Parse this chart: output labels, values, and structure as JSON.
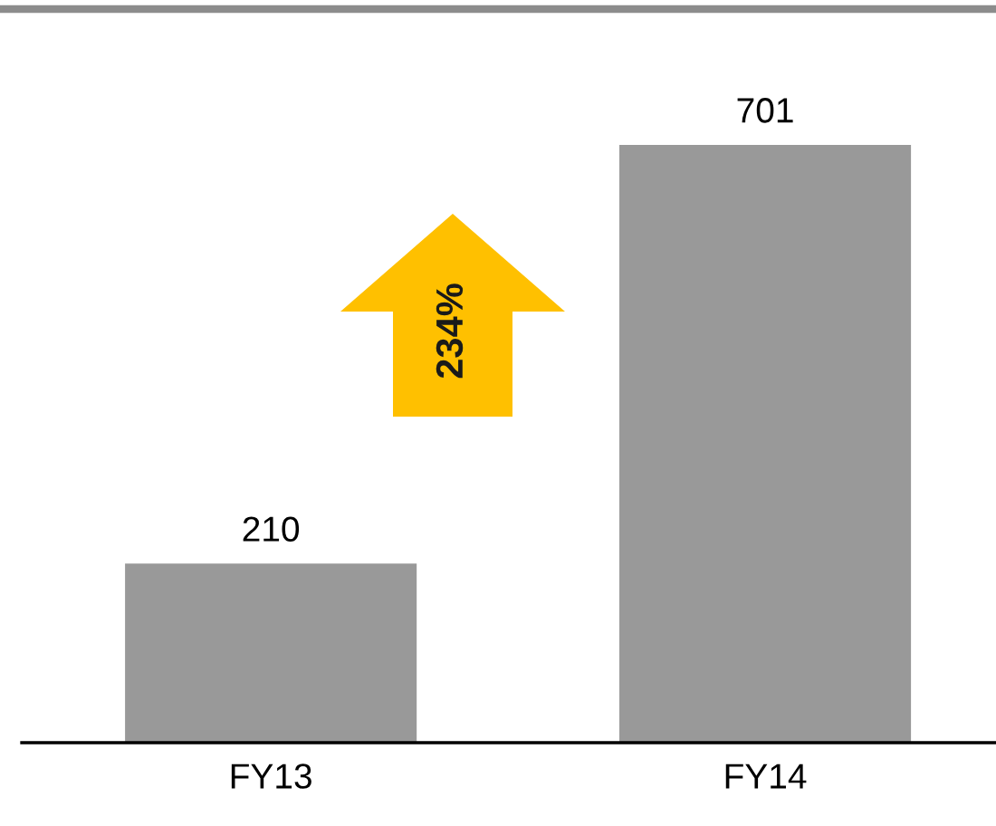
{
  "chart_data": {
    "type": "bar",
    "categories": [
      "FY13",
      "FY14"
    ],
    "values": [
      210,
      701
    ],
    "color": "#999999",
    "data_labels": true,
    "annotations": [
      "234%"
    ],
    "grid": false,
    "legend": false
  }
}
